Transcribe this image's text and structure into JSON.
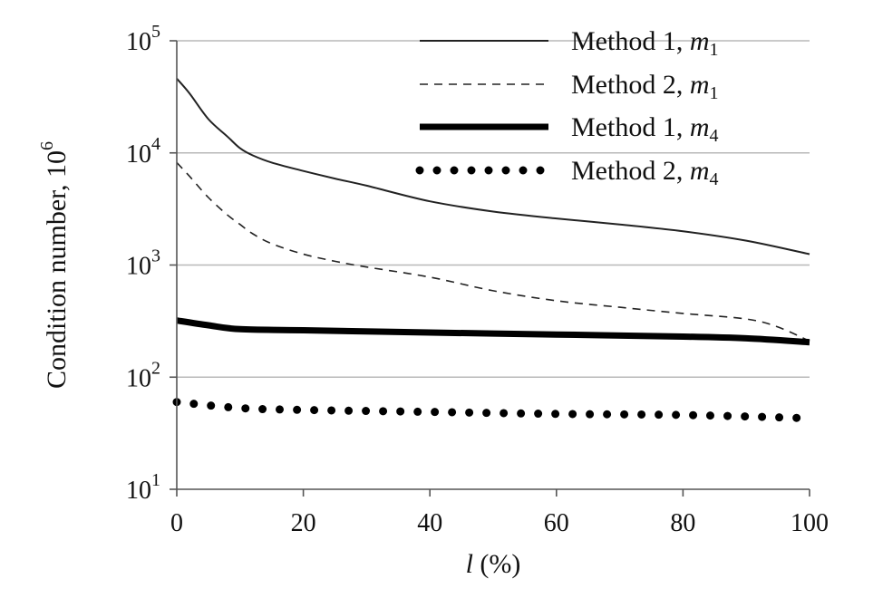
{
  "chart_data": {
    "type": "line",
    "title": "",
    "xlabel": {
      "var": "l",
      "rest": " (%)"
    },
    "ylabel": {
      "base": "Condition number, 10",
      "exp": "6"
    },
    "xlim": [
      0,
      100
    ],
    "ylim": [
      10,
      100000
    ],
    "yscale": "log",
    "grid": "horizontal",
    "x_ticks": [
      0,
      20,
      40,
      60,
      80,
      100
    ],
    "x_tick_labels": [
      "0",
      "20",
      "40",
      "60",
      "80",
      "100"
    ],
    "y_ticks": [
      10,
      100,
      1000,
      10000,
      100000
    ],
    "y_tick_labels": [
      {
        "base": "10",
        "exp": "1"
      },
      {
        "base": "10",
        "exp": "2"
      },
      {
        "base": "10",
        "exp": "3"
      },
      {
        "base": "10",
        "exp": "4"
      },
      {
        "base": "10",
        "exp": "5"
      }
    ],
    "legend_position": "top-right",
    "series": [
      {
        "name": "Method 1, m1",
        "label_main": "Method 1, ",
        "label_var": "m",
        "label_sub": "1",
        "style": "thin-solid",
        "x": [
          0,
          2,
          5,
          8,
          10,
          12,
          15,
          20,
          25,
          30,
          40,
          50,
          60,
          70,
          80,
          90,
          100
        ],
        "values": [
          46000,
          34000,
          20000,
          14000,
          11000,
          9500,
          8200,
          6900,
          5900,
          5100,
          3700,
          3000,
          2600,
          2300,
          2000,
          1650,
          1250
        ]
      },
      {
        "name": "Method 2, m1",
        "label_main": "Method 2, ",
        "label_var": "m",
        "label_sub": "1",
        "style": "dashed",
        "x": [
          0,
          2,
          5,
          8,
          10,
          12,
          15,
          20,
          25,
          30,
          40,
          50,
          60,
          70,
          80,
          90,
          95,
          100
        ],
        "values": [
          8200,
          6200,
          4000,
          2800,
          2300,
          1900,
          1550,
          1250,
          1080,
          960,
          780,
          590,
          480,
          420,
          370,
          330,
          280,
          210
        ]
      },
      {
        "name": "Method 1, m4",
        "label_main": "Method 1, ",
        "label_var": "m",
        "label_sub": "4",
        "style": "thick-solid",
        "x": [
          0,
          5,
          10,
          20,
          40,
          60,
          80,
          90,
          100
        ],
        "values": [
          320,
          290,
          268,
          262,
          250,
          240,
          230,
          222,
          205
        ]
      },
      {
        "name": "Method 2, m4",
        "label_main": "Method 2, ",
        "label_var": "m",
        "label_sub": "4",
        "style": "dotted",
        "x": [
          0,
          10,
          20,
          40,
          60,
          80,
          100
        ],
        "values": [
          60,
          53,
          51,
          49,
          47,
          46,
          43
        ]
      }
    ]
  }
}
